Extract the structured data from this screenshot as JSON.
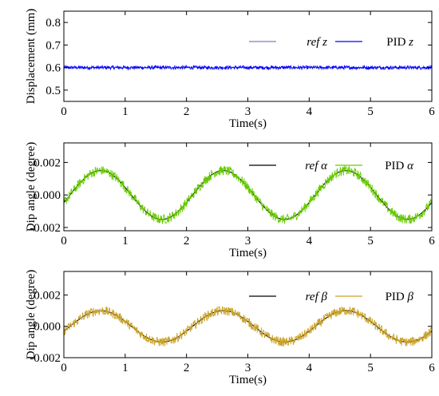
{
  "chart_data": [
    {
      "type": "line",
      "xlabel": "Time(s)",
      "ylabel": "Displacement (mm)",
      "xlim": [
        0,
        6
      ],
      "ylim": [
        0.45,
        0.85
      ],
      "xticks": [
        "0",
        "1",
        "2",
        "3",
        "4",
        "5",
        "6"
      ],
      "yticks": [
        "0.5",
        "0.6",
        "0.7",
        "0.8"
      ],
      "ytick_values": [
        0.5,
        0.6,
        0.7,
        0.8
      ],
      "legend_position": "top-right",
      "series": [
        {
          "name": "ref z",
          "name_italic": "ref",
          "name_symbol": "z",
          "color": "#7f7fbf",
          "kind": "constant",
          "offset": 0.6,
          "amplitude": 0,
          "period": 2
        },
        {
          "name": "PID z",
          "name_italic": "",
          "name_prefix": "PID",
          "name_symbol": "z",
          "color": "#0000ff",
          "kind": "noisy",
          "offset": 0.6,
          "amplitude": 0,
          "period": 2,
          "noise": 0.008
        }
      ]
    },
    {
      "type": "line",
      "xlabel": "Time(s)",
      "ylabel": "Dip angle (degree)",
      "xlim": [
        0,
        6
      ],
      "ylim": [
        -0.0022,
        0.0032
      ],
      "xticks": [
        "0",
        "1",
        "2",
        "3",
        "4",
        "5",
        "6"
      ],
      "yticks": [
        "-0.002",
        "0.000",
        "0.002"
      ],
      "ytick_values": [
        -0.002,
        0.0,
        0.002
      ],
      "legend_position": "top-right",
      "series": [
        {
          "name": "ref α",
          "name_italic": "ref",
          "name_symbol": "α",
          "color": "#000000",
          "kind": "sine",
          "offset": 0,
          "amplitude": 0.0015,
          "period": 2
        },
        {
          "name": "PID α",
          "name_italic": "",
          "name_prefix": "PID",
          "name_symbol": "α",
          "color": "#66cc00",
          "kind": "noisy",
          "offset": 0,
          "amplitude": 0.0015,
          "period": 2,
          "noise": 0.0003
        }
      ]
    },
    {
      "type": "line",
      "xlabel": "Time(s)",
      "ylabel": "Dip angle (degree)",
      "xlim": [
        0,
        6
      ],
      "ylim": [
        -0.002,
        0.0035
      ],
      "xticks": [
        "0",
        "1",
        "2",
        "3",
        "4",
        "5",
        "6"
      ],
      "yticks": [
        "-0.002",
        "0.000",
        "0.002"
      ],
      "ytick_values": [
        -0.002,
        0.0,
        0.002
      ],
      "legend_position": "top-right",
      "series": [
        {
          "name": "ref β",
          "name_italic": "ref",
          "name_symbol": "β",
          "color": "#000000",
          "kind": "sine",
          "offset": 0,
          "amplitude": 0.001,
          "period": 2
        },
        {
          "name": "PID β",
          "name_italic": "",
          "name_prefix": "PID",
          "name_symbol": "β",
          "color": "#c9a227",
          "kind": "noisy",
          "offset": 0,
          "amplitude": 0.001,
          "period": 2,
          "noise": 0.0003
        }
      ]
    }
  ]
}
